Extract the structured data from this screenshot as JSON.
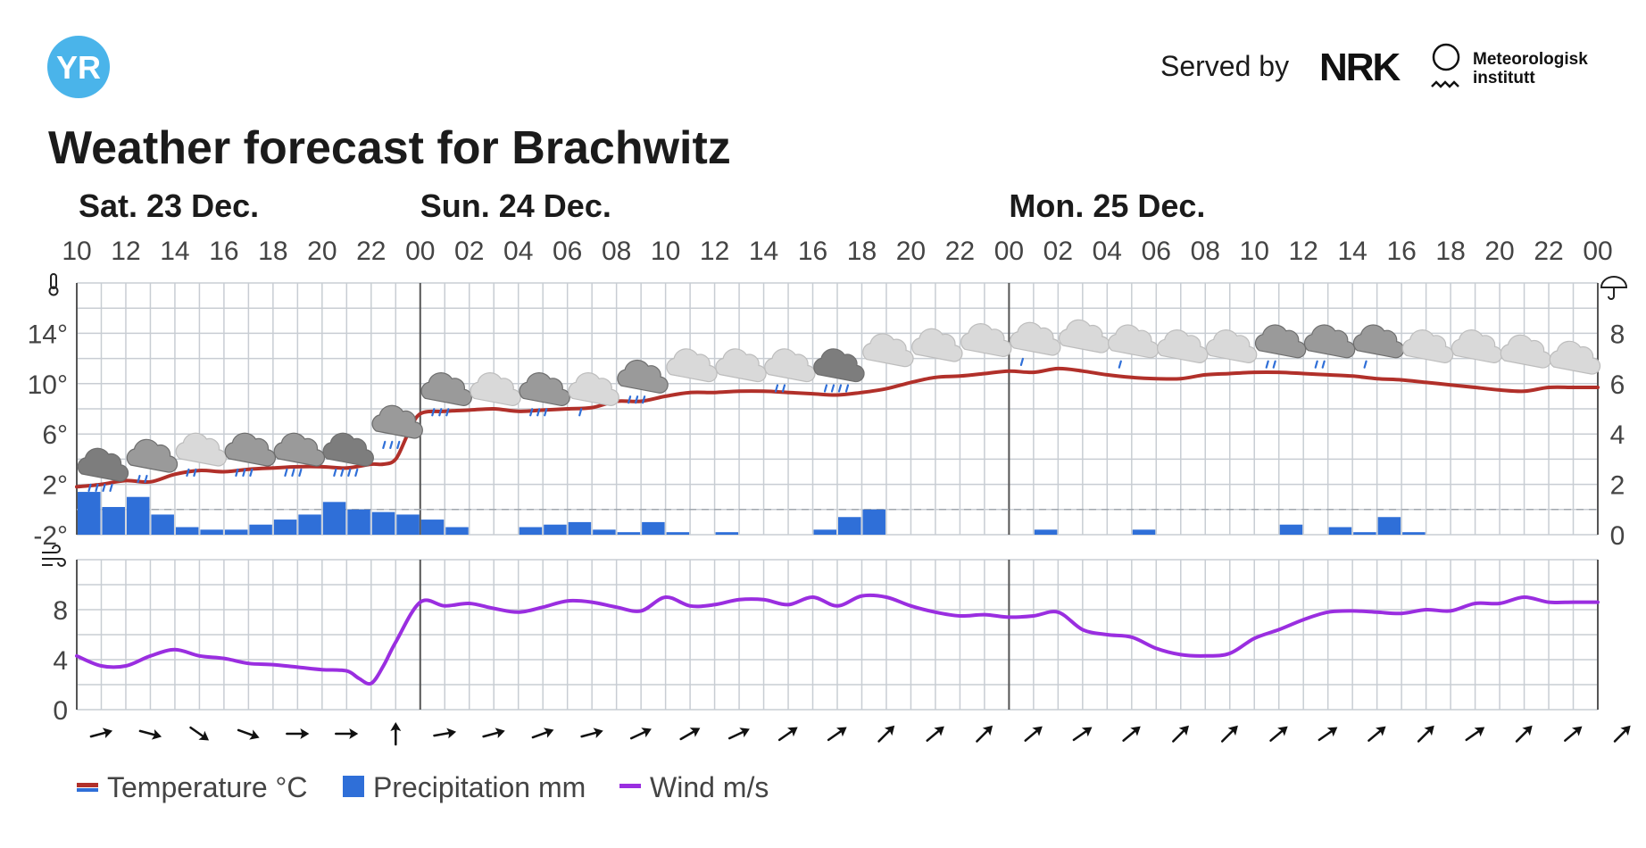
{
  "header": {
    "logo_text": "YR",
    "served_by": "Served by",
    "nrk_text": "NRK",
    "met_line1": "Meteorologisk",
    "met_line2": "institutt",
    "title": "Weather forecast for Brachwitz"
  },
  "colors": {
    "temperature": "#b1302a",
    "precipitation": "#2f6fd8",
    "wind": "#9a2ee0",
    "logo": "#4ab4ea",
    "grid": "#c8cdd3",
    "rain_drop": "#2f6fd8"
  },
  "legend": [
    {
      "label": "Temperature °C",
      "icon": "temperature-legend-icon"
    },
    {
      "label": "Precipitation mm",
      "icon": "precipitation-legend-icon"
    },
    {
      "label": "Wind m/s",
      "icon": "wind-legend-icon"
    }
  ],
  "chart_data": {
    "type": "line",
    "days": [
      {
        "label": "Sat. 23 Dec.",
        "start_hour": 10
      },
      {
        "label": "Sun. 24 Dec.",
        "start_hour": 24
      },
      {
        "label": "Mon. 25 Dec.",
        "start_hour": 48
      }
    ],
    "x_start_hour": 10,
    "x_end_hour": 72,
    "hour_ticks": [
      "10",
      "12",
      "14",
      "16",
      "18",
      "20",
      "22",
      "00",
      "02",
      "04",
      "06",
      "08",
      "10",
      "12",
      "14",
      "16",
      "18",
      "20",
      "22",
      "00",
      "02",
      "04",
      "06",
      "08",
      "10",
      "12",
      "14",
      "16",
      "18",
      "20",
      "22",
      "00"
    ],
    "temperature": {
      "name": "Temperature °C",
      "unit": "°C",
      "ylim": [
        -2,
        18
      ],
      "tick_labels": [
        "14°",
        "10°",
        "6°",
        "2°",
        "-2°"
      ],
      "tick_values": [
        14,
        10,
        6,
        2,
        -2
      ],
      "x": [
        10,
        11,
        12,
        13,
        14,
        15,
        16,
        17,
        18,
        19,
        20,
        21,
        22,
        22.5,
        23,
        23.5,
        24,
        25,
        26,
        27,
        28,
        29,
        30,
        31,
        32,
        33,
        34,
        35,
        36,
        37,
        38,
        39,
        40,
        41,
        42,
        43,
        44,
        45,
        46,
        47,
        48,
        49,
        50,
        51,
        52,
        53,
        54,
        55,
        56,
        57,
        58,
        59,
        60,
        61,
        62,
        63,
        64,
        65,
        66,
        67,
        68,
        69,
        70,
        71,
        72
      ],
      "values": [
        1.8,
        2.0,
        2.3,
        2.2,
        2.8,
        3.1,
        3.0,
        3.2,
        3.3,
        3.4,
        3.4,
        3.3,
        3.6,
        3.6,
        4.0,
        6.0,
        7.6,
        7.8,
        7.9,
        8.0,
        7.8,
        7.9,
        8.0,
        8.1,
        8.6,
        8.6,
        9.0,
        9.3,
        9.3,
        9.4,
        9.4,
        9.3,
        9.2,
        9.1,
        9.3,
        9.6,
        10.1,
        10.5,
        10.6,
        10.8,
        11.0,
        10.9,
        11.2,
        11.0,
        10.7,
        10.5,
        10.4,
        10.4,
        10.7,
        10.8,
        10.9,
        10.9,
        10.8,
        10.7,
        10.6,
        10.4,
        10.3,
        10.1,
        9.9,
        9.7,
        9.5,
        9.4,
        9.7,
        9.7,
        9.7
      ]
    },
    "precipitation": {
      "name": "Precipitation mm",
      "unit": "mm",
      "ylim": [
        0,
        10
      ],
      "tick_labels": [
        "8",
        "6",
        "4",
        "2",
        "0"
      ],
      "tick_values": [
        8,
        6,
        4,
        2,
        0
      ],
      "start_hours": [
        10,
        11,
        12,
        13,
        14,
        15,
        16,
        17,
        18,
        19,
        20,
        21,
        22,
        23,
        24,
        25,
        26,
        27,
        28,
        29,
        30,
        31,
        32,
        33,
        34,
        35,
        36,
        37,
        38,
        39,
        40,
        41,
        42,
        43,
        44,
        45,
        46,
        47,
        48,
        49,
        50,
        51,
        52,
        53,
        54,
        55,
        56,
        57,
        58,
        59,
        60,
        61,
        62,
        63,
        64,
        65,
        66,
        67,
        68,
        69,
        70,
        71
      ],
      "values": [
        1.7,
        1.1,
        1.5,
        0.8,
        0.3,
        0.2,
        0.2,
        0.4,
        0.6,
        0.8,
        1.3,
        1.0,
        0.9,
        0.8,
        0.6,
        0.3,
        0,
        0,
        0.3,
        0.4,
        0.5,
        0.2,
        0.1,
        0.5,
        0.1,
        0,
        0.1,
        0,
        0,
        0,
        0.2,
        0.7,
        1.0,
        0,
        0,
        0,
        0,
        0,
        0,
        0.2,
        0,
        0,
        0,
        0.2,
        0,
        0,
        0,
        0,
        0,
        0.4,
        0,
        0.3,
        0.1,
        0.7,
        0.1,
        0,
        0,
        0,
        0,
        0,
        0,
        0
      ]
    },
    "wind": {
      "name": "Wind m/s",
      "unit": "m/s",
      "ylim": [
        0,
        12
      ],
      "tick_labels": [
        "8",
        "4",
        "0"
      ],
      "tick_values": [
        8,
        4,
        0
      ],
      "x": [
        10,
        11,
        12,
        13,
        14,
        15,
        16,
        17,
        18,
        19,
        20,
        21,
        21.5,
        22,
        22.5,
        23,
        24,
        25,
        26,
        27,
        28,
        29,
        30,
        31,
        32,
        33,
        34,
        35,
        36,
        37,
        38,
        39,
        40,
        41,
        42,
        43,
        44,
        45,
        46,
        47,
        48,
        49,
        50,
        51,
        52,
        53,
        54,
        55,
        56,
        57,
        58,
        59,
        60,
        61,
        62,
        63,
        64,
        65,
        66,
        67,
        68,
        69,
        70,
        71,
        72
      ],
      "values": [
        4.3,
        3.5,
        3.5,
        4.3,
        4.8,
        4.3,
        4.1,
        3.7,
        3.6,
        3.4,
        3.2,
        3.1,
        2.5,
        2.1,
        3.5,
        5.4,
        8.6,
        8.3,
        8.5,
        8.1,
        7.8,
        8.2,
        8.7,
        8.6,
        8.2,
        7.9,
        9.0,
        8.3,
        8.4,
        8.8,
        8.8,
        8.4,
        9.0,
        8.3,
        9.1,
        9.0,
        8.3,
        7.8,
        7.5,
        7.6,
        7.4,
        7.5,
        7.8,
        6.4,
        6.0,
        5.8,
        4.9,
        4.4,
        4.3,
        4.5,
        5.7,
        6.4,
        7.2,
        7.8,
        7.9,
        7.8,
        7.7,
        8.0,
        7.9,
        8.5,
        8.5,
        9.0,
        8.6,
        8.6,
        8.6
      ]
    },
    "wind_direction_deg": [
      75,
      105,
      125,
      110,
      90,
      90,
      0,
      80,
      75,
      70,
      75,
      65,
      60,
      65,
      55,
      55,
      45,
      50,
      45,
      50,
      55,
      50,
      45,
      45,
      50,
      55,
      50,
      45,
      55,
      45,
      50,
      45
    ],
    "weather_icons": [
      {
        "hour": 11,
        "icon": "heavy-rain-cloud-icon",
        "temp": 3.4,
        "drops": 4
      },
      {
        "hour": 13,
        "icon": "rain-cloud-icon",
        "temp": 4.1,
        "drops": 2
      },
      {
        "hour": 15,
        "icon": "light-rain-cloud-icon",
        "temp": 4.6,
        "drops": 2
      },
      {
        "hour": 17,
        "icon": "rain-cloud-icon",
        "temp": 4.6,
        "drops": 3
      },
      {
        "hour": 19,
        "icon": "rain-cloud-icon",
        "temp": 4.6,
        "drops": 3
      },
      {
        "hour": 21,
        "icon": "heavy-rain-cloud-icon",
        "temp": 4.6,
        "drops": 4
      },
      {
        "hour": 23,
        "icon": "rain-cloud-icon",
        "temp": 6.8,
        "drops": 3
      },
      {
        "hour": 25,
        "icon": "rain-cloud-icon",
        "temp": 9.4,
        "drops": 3
      },
      {
        "hour": 27,
        "icon": "cloud-icon",
        "temp": 9.4,
        "drops": 0
      },
      {
        "hour": 29,
        "icon": "rain-cloud-icon",
        "temp": 9.4,
        "drops": 3
      },
      {
        "hour": 31,
        "icon": "light-rain-cloud-icon",
        "temp": 9.4,
        "drops": 1
      },
      {
        "hour": 33,
        "icon": "rain-cloud-icon",
        "temp": 10.4,
        "drops": 3
      },
      {
        "hour": 35,
        "icon": "cloud-icon",
        "temp": 11.3,
        "drops": 0
      },
      {
        "hour": 37,
        "icon": "cloud-icon",
        "temp": 11.3,
        "drops": 0
      },
      {
        "hour": 39,
        "icon": "light-rain-cloud-icon",
        "temp": 11.3,
        "drops": 2
      },
      {
        "hour": 41,
        "icon": "heavy-rain-cloud-icon",
        "temp": 11.3,
        "drops": 4
      },
      {
        "hour": 43,
        "icon": "cloud-icon",
        "temp": 12.5,
        "drops": 0
      },
      {
        "hour": 45,
        "icon": "cloud-icon",
        "temp": 12.9,
        "drops": 0
      },
      {
        "hour": 47,
        "icon": "cloud-icon",
        "temp": 13.3,
        "drops": 0
      },
      {
        "hour": 49,
        "icon": "light-rain-cloud-icon",
        "temp": 13.4,
        "drops": 1
      },
      {
        "hour": 51,
        "icon": "cloud-icon",
        "temp": 13.6,
        "drops": 0
      },
      {
        "hour": 53,
        "icon": "light-rain-cloud-icon",
        "temp": 13.2,
        "drops": 1
      },
      {
        "hour": 55,
        "icon": "cloud-icon",
        "temp": 12.8,
        "drops": 0
      },
      {
        "hour": 57,
        "icon": "cloud-icon",
        "temp": 12.8,
        "drops": 0
      },
      {
        "hour": 59,
        "icon": "rain-cloud-icon",
        "temp": 13.2,
        "drops": 2
      },
      {
        "hour": 61,
        "icon": "rain-cloud-icon",
        "temp": 13.2,
        "drops": 2
      },
      {
        "hour": 63,
        "icon": "rain-cloud-icon",
        "temp": 13.2,
        "drops": 1
      },
      {
        "hour": 65,
        "icon": "cloud-icon",
        "temp": 12.8,
        "drops": 0
      },
      {
        "hour": 67,
        "icon": "cloud-icon",
        "temp": 12.8,
        "drops": 0
      },
      {
        "hour": 69,
        "icon": "cloud-icon",
        "temp": 12.4,
        "drops": 0
      },
      {
        "hour": 71,
        "icon": "cloud-icon",
        "temp": 11.9,
        "drops": 0
      }
    ],
    "zero_line": "dashed"
  }
}
